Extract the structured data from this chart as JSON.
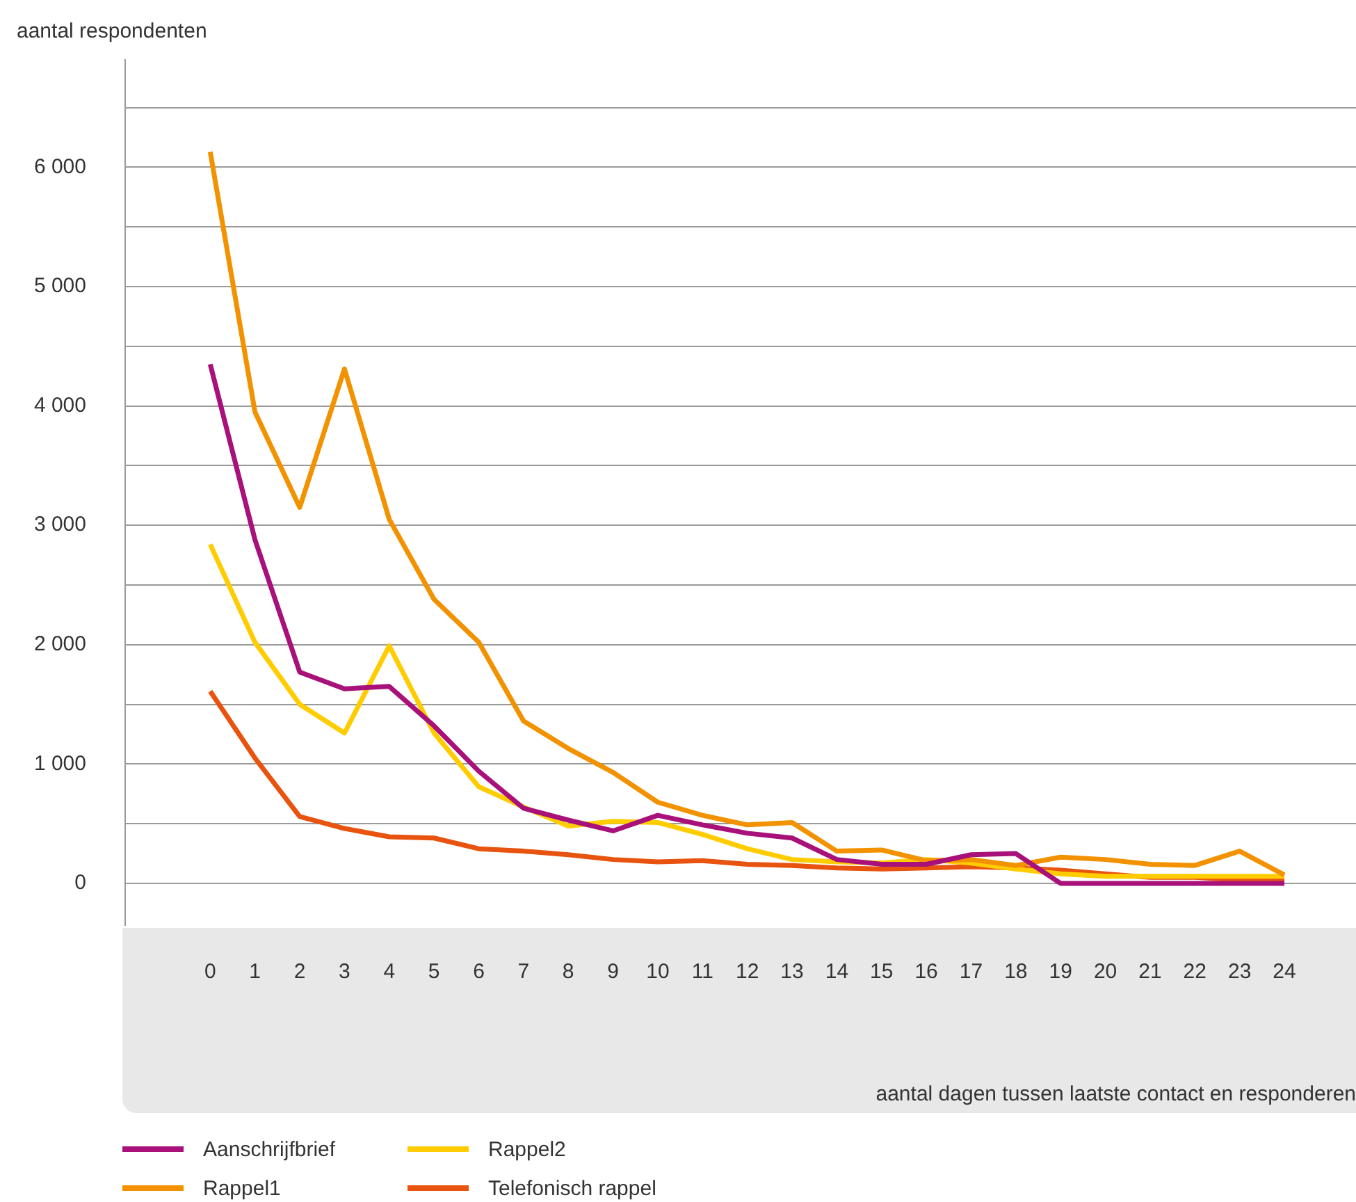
{
  "chart_data": {
    "type": "line",
    "ylabel": "aantal respondenten",
    "xlabel": "aantal dagen tussen laatste contact en responderen",
    "x": [
      0,
      1,
      2,
      3,
      4,
      5,
      6,
      7,
      8,
      9,
      10,
      11,
      12,
      13,
      14,
      15,
      16,
      17,
      18,
      19,
      20,
      21,
      22,
      23,
      24
    ],
    "xlim": [
      -1.9,
      25.6
    ],
    "xticks": [
      0,
      1,
      2,
      3,
      4,
      5,
      6,
      7,
      8,
      9,
      10,
      11,
      12,
      13,
      14,
      15,
      16,
      17,
      18,
      19,
      20,
      21,
      22,
      23,
      24
    ],
    "ylim": [
      -350,
      6900
    ],
    "yticks": [
      {
        "value": 0,
        "label": "0"
      },
      {
        "value": 500,
        "label": null
      },
      {
        "value": 1000,
        "label": "1 000"
      },
      {
        "value": 1500,
        "label": null
      },
      {
        "value": 2000,
        "label": "2 000"
      },
      {
        "value": 2500,
        "label": null
      },
      {
        "value": 3000,
        "label": "3 000"
      },
      {
        "value": 3500,
        "label": null
      },
      {
        "value": 4000,
        "label": "4 000"
      },
      {
        "value": 4500,
        "label": null
      },
      {
        "value": 5000,
        "label": "5 000"
      },
      {
        "value": 5500,
        "label": null
      },
      {
        "value": 6000,
        "label": "6 000"
      },
      {
        "value": 6500,
        "label": null
      }
    ],
    "grid": "y",
    "legend": "bottom",
    "marker": "none",
    "line_style": "solid",
    "series": [
      {
        "name": "Aanschrijfbrief",
        "color": "#a8107a",
        "values": [
          4350,
          2880,
          1770,
          1630,
          1650,
          1320,
          940,
          630,
          530,
          440,
          570,
          490,
          420,
          380,
          200,
          160,
          160,
          240,
          250,
          0,
          0,
          0,
          0,
          0,
          0
        ]
      },
      {
        "name": "Rappel1",
        "color": "#f39200",
        "values": [
          6130,
          3950,
          3150,
          4310,
          3050,
          2380,
          2020,
          1360,
          1130,
          930,
          680,
          570,
          490,
          510,
          270,
          280,
          190,
          200,
          150,
          220,
          200,
          160,
          150,
          270,
          70
        ]
      },
      {
        "name": "Rappel2",
        "color": "#ffcc00",
        "values": [
          2840,
          2020,
          1500,
          1260,
          1990,
          1260,
          810,
          640,
          480,
          520,
          510,
          410,
          290,
          200,
          180,
          170,
          200,
          170,
          120,
          80,
          60,
          60,
          60,
          60,
          60
        ]
      },
      {
        "name": "Telefonisch rappel",
        "color": "#e8540f",
        "values": [
          1610,
          1050,
          560,
          460,
          390,
          380,
          290,
          270,
          240,
          200,
          180,
          190,
          160,
          150,
          130,
          120,
          130,
          140,
          130,
          110,
          80,
          50,
          50,
          30,
          30
        ]
      }
    ]
  }
}
